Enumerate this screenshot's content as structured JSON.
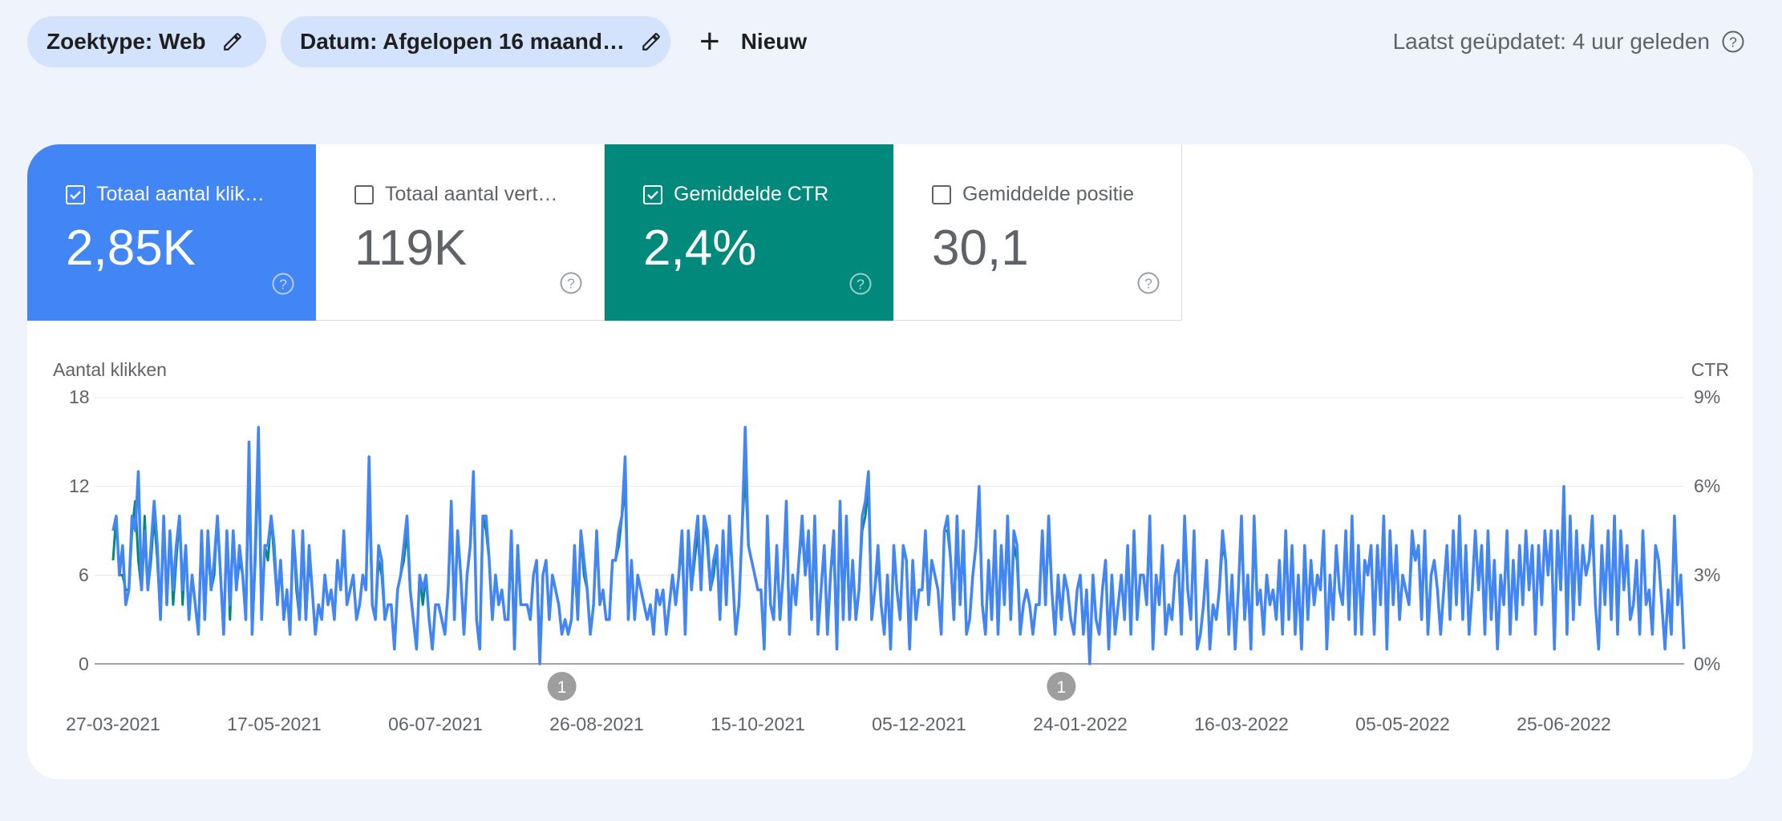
{
  "filters": {
    "search_type": "Zoektype: Web",
    "date": "Datum: Afgelopen 16 maand…",
    "new_label": "Nieuw"
  },
  "last_updated": "Laatst geüpdatet: 4 uur geleden",
  "metrics": [
    {
      "label": "Totaal aantal klik…",
      "value": "2,85K",
      "selected": true,
      "color": "#4285f4"
    },
    {
      "label": "Totaal aantal vert…",
      "value": "119K",
      "selected": false,
      "color": "#ffffff"
    },
    {
      "label": "Gemiddelde CTR",
      "value": "2,4%",
      "selected": true,
      "color": "#01897b"
    },
    {
      "label": "Gemiddelde positie",
      "value": "30,1",
      "selected": false,
      "color": "#ffffff"
    }
  ],
  "chart_data": {
    "type": "line",
    "ylabel_left": "Aantal klikken",
    "ylabel_right": "CTR",
    "ylim_left": [
      0,
      18
    ],
    "ylim_right": [
      0,
      9
    ],
    "yticks_left": [
      "18",
      "12",
      "6",
      "0"
    ],
    "yticks_right": [
      "9%",
      "6%",
      "3%",
      "0%"
    ],
    "x_ticks": [
      "27-03-2021",
      "17-05-2021",
      "06-07-2021",
      "26-08-2021",
      "15-10-2021",
      "05-12-2021",
      "24-01-2022",
      "16-03-2022",
      "05-05-2022",
      "25-06-2022"
    ],
    "annotations": [
      {
        "label": "1",
        "date": "2021-08-16"
      },
      {
        "label": "1",
        "date": "2022-01-21"
      }
    ],
    "series": [
      {
        "axis": "left",
        "color": "#4285f4",
        "start_date": "2021-03-27",
        "values": [
          9,
          10,
          6,
          8,
          4,
          5,
          10,
          9,
          13,
          5,
          9,
          5,
          8,
          11,
          8,
          3,
          10,
          4,
          9,
          5,
          8,
          10,
          5,
          8,
          3,
          6,
          4,
          2,
          9,
          3,
          9,
          5,
          7,
          10,
          6,
          2,
          9,
          4,
          9,
          5,
          8,
          6,
          3,
          15,
          2,
          8,
          16,
          3,
          8,
          8,
          10,
          8,
          4,
          7,
          3,
          5,
          2,
          9,
          6,
          3,
          9,
          3,
          8,
          5,
          2,
          4,
          3,
          6,
          4,
          5,
          3,
          7,
          5,
          9,
          4,
          5,
          6,
          3,
          4,
          6,
          5,
          14,
          4,
          3,
          8,
          7,
          3,
          4,
          4,
          1,
          5,
          6,
          8,
          10,
          5,
          3,
          1,
          6,
          5,
          6,
          3,
          1,
          4,
          4,
          3,
          2,
          5,
          11,
          3,
          9,
          6,
          2,
          6,
          8,
          13,
          3,
          1,
          10,
          10,
          7,
          3,
          6,
          4,
          5,
          3,
          3,
          9,
          1,
          8,
          4,
          4,
          4,
          3,
          6,
          7,
          0,
          6,
          7,
          3,
          6,
          5,
          4,
          2,
          3,
          2,
          3,
          8,
          3,
          9,
          7,
          5,
          2,
          4,
          9,
          4,
          5,
          3,
          3,
          7,
          7,
          9,
          10,
          14,
          3,
          7,
          3,
          6,
          5,
          4,
          3,
          4,
          2,
          5,
          4,
          5,
          2,
          4,
          6,
          4,
          6,
          9,
          2,
          9,
          5,
          8,
          10,
          5,
          10,
          9,
          5,
          7,
          8,
          3,
          9,
          4,
          10,
          6,
          2,
          4,
          9,
          16,
          8,
          7,
          6,
          5,
          5,
          1,
          10,
          4,
          3,
          8,
          3,
          6,
          11,
          2,
          6,
          4,
          7,
          10,
          6,
          9,
          3,
          10,
          2,
          5,
          8,
          2,
          6,
          9,
          1,
          11,
          3,
          10,
          3,
          7,
          3,
          5,
          10,
          11,
          13,
          3,
          5,
          8,
          4,
          2,
          6,
          1,
          8,
          5,
          3,
          8,
          7,
          1,
          7,
          3,
          5,
          5,
          9,
          4,
          7,
          6,
          5,
          2,
          9,
          10,
          7,
          3,
          10,
          4,
          9,
          2,
          3,
          6,
          8,
          12,
          4,
          2,
          7,
          3,
          9,
          2,
          8,
          4,
          10,
          3,
          9,
          8,
          2,
          4,
          5,
          4,
          2,
          4,
          4,
          9,
          4,
          10,
          5,
          2,
          6,
          3,
          6,
          5,
          3,
          2,
          5,
          6,
          2,
          5,
          0,
          6,
          3,
          2,
          5,
          7,
          1,
          6,
          2,
          4,
          6,
          3,
          8,
          2,
          9,
          3,
          6,
          6,
          4,
          10,
          1,
          6,
          4,
          8,
          2,
          4,
          3,
          6,
          7,
          2,
          10,
          5,
          3,
          9,
          1,
          2,
          4,
          7,
          1,
          4,
          3,
          5,
          9,
          7,
          2,
          6,
          1,
          5,
          10,
          3,
          6,
          1,
          10,
          4,
          5,
          2,
          6,
          4,
          5,
          3,
          7,
          2,
          9,
          3,
          8,
          2,
          6,
          1,
          8,
          3,
          7,
          4,
          6,
          5,
          9,
          1,
          6,
          3,
          8,
          5,
          4,
          9,
          3,
          10,
          2,
          8,
          2,
          7,
          6,
          8,
          2,
          8,
          4,
          10,
          1,
          9,
          4,
          8,
          3,
          6,
          5,
          4,
          9,
          7,
          8,
          3,
          9,
          2,
          6,
          7,
          5,
          2,
          5,
          8,
          3,
          9,
          4,
          10,
          3,
          8,
          2,
          5,
          9,
          5,
          8,
          2,
          9,
          3,
          7,
          1,
          6,
          4,
          9,
          2,
          7,
          3,
          8,
          4,
          9,
          5,
          8,
          2,
          8,
          4,
          9,
          6,
          9,
          1,
          9,
          5,
          12,
          2,
          10,
          3,
          9,
          4,
          8,
          6,
          7,
          10,
          4,
          1,
          8,
          4,
          9,
          3,
          10,
          2,
          9,
          5,
          8,
          3,
          4,
          7,
          2,
          9,
          4,
          5,
          2,
          8,
          7,
          4,
          1,
          5,
          2,
          10,
          4,
          6,
          1,
          8
        ],
        "area": false
      },
      {
        "axis": "left",
        "color": "#01897b",
        "start_date": "2021-03-27",
        "values": [
          7,
          10,
          6,
          6,
          5,
          5,
          9,
          11,
          7,
          5,
          10,
          5,
          7,
          10,
          7,
          3,
          10,
          4,
          9,
          4,
          7,
          10,
          4,
          8,
          3,
          6,
          4,
          2,
          9,
          3,
          8,
          5,
          6,
          10,
          6,
          2,
          9,
          3,
          9,
          5,
          7,
          6,
          3,
          13,
          2,
          7,
          14,
          3,
          8,
          7,
          10,
          7,
          4,
          7,
          3,
          5,
          2,
          9,
          5,
          3,
          8,
          3,
          7,
          5,
          2,
          4,
          3,
          6,
          4,
          5,
          3,
          7,
          5,
          8,
          4,
          5,
          6,
          3,
          4,
          6,
          5,
          12,
          4,
          3,
          7,
          6,
          3,
          4,
          4,
          1,
          5,
          6,
          7,
          9,
          5,
          3,
          1,
          6,
          4,
          6,
          3,
          1,
          4,
          4,
          3,
          2,
          5,
          10,
          3,
          9,
          6,
          2,
          6,
          8,
          12,
          3,
          1,
          10,
          9,
          7,
          3,
          6,
          4,
          5,
          3,
          3,
          8,
          1,
          8,
          4,
          4,
          4,
          3,
          6,
          7,
          1,
          6,
          7,
          3,
          6,
          5,
          4,
          2,
          3,
          2,
          3,
          7,
          3,
          9,
          6,
          5,
          2,
          4,
          9,
          4,
          5,
          3,
          3,
          7,
          7,
          8,
          10,
          12,
          3,
          7,
          3,
          6,
          5,
          4,
          3,
          4,
          2,
          5,
          4,
          5,
          2,
          4,
          6,
          4,
          6,
          8,
          2,
          9,
          5,
          7,
          9,
          5,
          10,
          8,
          5,
          6,
          8,
          3,
          9,
          4,
          9,
          6,
          2,
          4,
          9,
          13,
          8,
          7,
          6,
          5,
          5,
          1,
          9,
          4,
          3,
          8,
          3,
          6,
          10,
          2,
          6,
          4,
          7,
          9,
          6,
          8,
          3,
          9,
          2,
          5,
          8,
          2,
          6,
          8,
          1,
          10,
          3,
          9,
          3,
          7,
          3,
          5,
          9,
          10,
          12,
          3,
          5,
          7,
          4,
          2,
          6,
          1,
          8,
          5,
          3,
          8,
          7,
          1,
          7,
          3,
          5,
          5,
          8,
          4,
          7,
          6,
          5,
          2,
          9,
          9,
          7,
          3,
          9,
          4,
          8,
          2,
          3,
          6,
          8,
          11,
          4,
          2,
          7,
          3,
          9,
          2,
          8,
          4,
          9,
          3,
          8,
          7,
          2,
          4,
          5,
          4,
          2,
          4,
          4,
          9,
          4,
          9,
          5,
          2,
          6,
          3,
          6,
          5,
          3,
          2,
          5,
          6,
          2,
          5,
          0,
          6,
          3,
          2,
          5,
          7,
          1,
          6,
          2,
          4,
          6,
          3,
          8,
          2,
          9,
          3,
          6,
          6,
          4,
          10,
          1,
          6,
          4,
          8,
          2,
          4,
          3,
          6,
          7,
          2,
          9,
          5,
          3,
          9,
          1,
          2,
          4,
          7,
          1,
          4,
          3,
          5,
          8,
          7,
          2,
          6,
          1,
          5,
          9,
          3,
          6,
          1,
          9,
          4,
          5,
          2,
          6,
          4,
          5,
          3,
          7,
          2,
          9,
          3,
          8,
          2,
          6,
          1,
          8,
          3,
          7,
          4,
          6,
          5,
          9,
          1,
          6,
          3,
          8,
          5,
          4,
          9,
          3,
          9,
          2,
          8,
          2,
          7,
          6,
          8,
          2,
          8,
          4,
          10,
          1,
          9,
          4,
          8,
          3,
          6,
          5,
          4,
          8,
          7,
          8,
          3,
          9,
          2,
          6,
          7,
          5,
          2,
          5,
          8,
          3,
          9,
          4,
          10,
          3,
          8,
          2,
          5,
          9,
          5,
          8,
          2,
          8,
          3,
          7,
          1,
          6,
          4,
          9,
          2,
          7,
          3,
          8,
          4,
          9,
          5,
          8,
          2,
          8,
          4,
          9,
          6,
          9,
          1,
          9,
          5,
          11,
          2,
          10,
          3,
          9,
          4,
          8,
          6,
          7,
          9,
          4,
          1,
          8,
          4,
          9,
          3,
          10,
          2,
          9,
          5,
          8,
          3,
          4,
          7,
          2,
          9,
          4,
          5,
          2,
          8,
          7,
          4,
          1,
          5,
          2,
          10,
          4,
          6,
          1,
          7
        ]
      }
    ]
  }
}
